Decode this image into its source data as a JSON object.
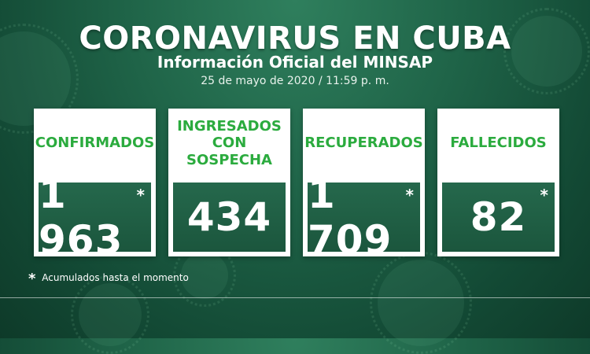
{
  "header": {
    "title": "CORONAVIRUS EN CUBA",
    "subtitle": "Información Oficial del MINSAP",
    "date": "25 de mayo de 2020 / 11:59 p. m."
  },
  "cards": [
    {
      "label": "CONFIRMADOS",
      "value": "1 963",
      "asterisk": "*"
    },
    {
      "label": "INGRESADOS CON SOSPECHA",
      "value": "434",
      "asterisk": ""
    },
    {
      "label": "RECUPERADOS",
      "value": "1 709",
      "asterisk": "*"
    },
    {
      "label": "FALLECIDOS",
      "value": "82",
      "asterisk": "*"
    }
  ],
  "footnote": {
    "symbol": "*",
    "text": "Acumulados hasta el momento"
  },
  "colors": {
    "background": "#1f6448",
    "label_green": "#2bab3e",
    "value_box": "#1b563d"
  }
}
